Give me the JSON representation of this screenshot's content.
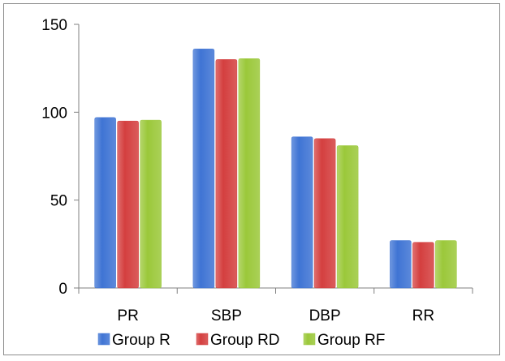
{
  "chart_data": {
    "type": "bar",
    "categories": [
      "PR",
      "SBP",
      "DBP",
      "RR"
    ],
    "series": [
      {
        "name": "Group R",
        "values": [
          97,
          136,
          86,
          27
        ],
        "color": "#3f74d4"
      },
      {
        "name": "Group RD",
        "values": [
          95,
          130,
          85,
          26
        ],
        "color": "#d43f3f"
      },
      {
        "name": "Group RF",
        "values": [
          95.5,
          130.5,
          81,
          27
        ],
        "color": "#9bc83a"
      }
    ],
    "y_ticks": [
      "0",
      "50",
      "100",
      "150"
    ],
    "ylim": [
      0,
      150
    ],
    "grid": false,
    "legend_position": "bottom"
  }
}
